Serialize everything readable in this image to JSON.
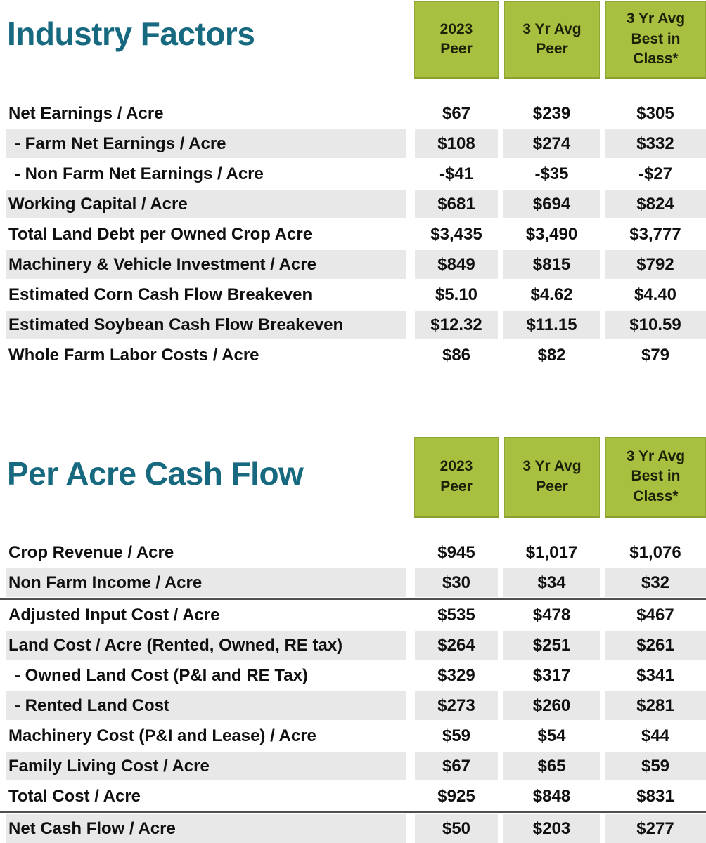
{
  "colors": {
    "title_teal": "#17697f",
    "header_green": "#a8c040",
    "header_green_border": "#89a02e",
    "header_text": "#1c2008",
    "row_stripe_gray": "#e8e8e8",
    "body_text": "#101010",
    "divider_gray": "#4f4f4f",
    "background": "#ffffff"
  },
  "tables": [
    {
      "title": "Industry Factors",
      "columns": [
        "2023\nPeer",
        "3 Yr Avg\nPeer",
        "3 Yr Avg\nBest in\nClass*"
      ],
      "rows": [
        {
          "label": "Net Earnings / Acre",
          "values": [
            "$67",
            "$239",
            "$305"
          ]
        },
        {
          "label": "- Farm Net Earnings / Acre",
          "values": [
            "$108",
            "$274",
            "$332"
          ]
        },
        {
          "label": "- Non Farm Net Earnings / Acre",
          "values": [
            "-$41",
            "-$35",
            "-$27"
          ]
        },
        {
          "label": "Working Capital / Acre",
          "values": [
            "$681",
            "$694",
            "$824"
          ]
        },
        {
          "label": "Total Land Debt per Owned Crop Acre",
          "values": [
            "$3,435",
            "$3,490",
            "$3,777"
          ]
        },
        {
          "label": "Machinery & Vehicle Investment / Acre",
          "values": [
            "$849",
            "$815",
            "$792"
          ]
        },
        {
          "label": "Estimated Corn Cash Flow Breakeven",
          "values": [
            "$5.10",
            "$4.62",
            "$4.40"
          ]
        },
        {
          "label": "Estimated Soybean Cash Flow Breakeven",
          "values": [
            "$12.32",
            "$11.15",
            "$10.59"
          ]
        },
        {
          "label": "Whole Farm Labor Costs / Acre",
          "values": [
            "$86",
            "$82",
            "$79"
          ]
        }
      ]
    },
    {
      "title": "Per Acre Cash Flow",
      "columns": [
        "2023\nPeer",
        "3 Yr Avg\nPeer",
        "3 Yr Avg\nBest in\nClass*"
      ],
      "rows": [
        {
          "label": "Crop Revenue / Acre",
          "values": [
            "$945",
            "$1,017",
            "$1,076"
          ]
        },
        {
          "label": "Non Farm Income / Acre",
          "values": [
            "$30",
            "$34",
            "$32"
          ]
        },
        {
          "label": "Adjusted Input Cost / Acre",
          "values": [
            "$535",
            "$478",
            "$467"
          ]
        },
        {
          "label": "Land Cost / Acre (Rented, Owned, RE tax)",
          "values": [
            "$264",
            "$251",
            "$261"
          ]
        },
        {
          "label": "- Owned Land Cost (P&I and RE Tax)",
          "values": [
            "$329",
            "$317",
            "$341"
          ]
        },
        {
          "label": "- Rented Land Cost",
          "values": [
            "$273",
            "$260",
            "$281"
          ]
        },
        {
          "label": "Machinery Cost (P&I and Lease) / Acre",
          "values": [
            "$59",
            "$54",
            "$44"
          ]
        },
        {
          "label": "Family Living Cost / Acre",
          "values": [
            "$67",
            "$65",
            "$59"
          ]
        },
        {
          "label": "Total Cost / Acre",
          "values": [
            "$925",
            "$848",
            "$831"
          ]
        },
        {
          "label": "Net Cash Flow / Acre",
          "values": [
            "$50",
            "$203",
            "$277"
          ]
        }
      ]
    }
  ]
}
